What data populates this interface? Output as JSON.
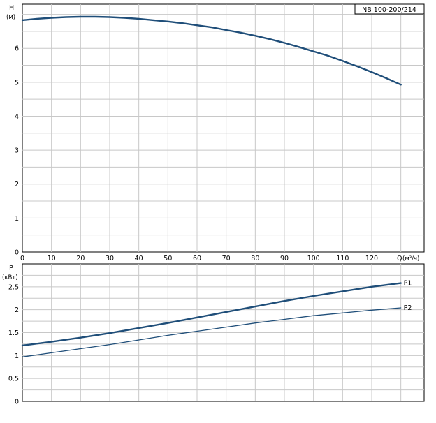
{
  "chart_data": [
    {
      "type": "line",
      "title": "NB 100-200/214",
      "ylabel": "H",
      "yunit": "(м)",
      "xlabel": "Q",
      "xunit": "(м³/ч)",
      "xlim": [
        0,
        138
      ],
      "ylim": [
        0,
        7.3
      ],
      "xticks": [
        0,
        10,
        20,
        30,
        40,
        50,
        60,
        70,
        80,
        90,
        100,
        110,
        120
      ],
      "yticks": [
        0,
        1,
        2,
        3,
        4,
        5,
        6
      ],
      "grid": true,
      "series": [
        {
          "name": "",
          "color": "#1f4e79",
          "x": [
            0,
            5,
            10,
            15,
            20,
            25,
            30,
            35,
            40,
            45,
            50,
            55,
            60,
            65,
            70,
            75,
            80,
            85,
            90,
            95,
            100,
            105,
            110,
            115,
            120,
            125,
            130
          ],
          "y": [
            6.83,
            6.87,
            6.9,
            6.92,
            6.93,
            6.93,
            6.92,
            6.9,
            6.87,
            6.83,
            6.79,
            6.74,
            6.68,
            6.62,
            6.54,
            6.46,
            6.37,
            6.27,
            6.16,
            6.04,
            5.91,
            5.78,
            5.63,
            5.47,
            5.3,
            5.12,
            4.93
          ]
        }
      ]
    },
    {
      "type": "line",
      "ylabel": "P",
      "yunit": "(кВт)",
      "xlim": [
        0,
        138
      ],
      "ylim": [
        0,
        3.0
      ],
      "yticks": [
        0,
        0.5,
        1,
        1.5,
        2,
        2.5
      ],
      "ytick_labels": [
        "0",
        "0.5",
        "1",
        "1.5",
        "2",
        "2.5"
      ],
      "grid": true,
      "series": [
        {
          "name": "P1",
          "color": "#1f4e79",
          "x": [
            0,
            10,
            20,
            30,
            40,
            50,
            60,
            70,
            80,
            90,
            100,
            110,
            120,
            130
          ],
          "y": [
            1.22,
            1.3,
            1.39,
            1.49,
            1.6,
            1.71,
            1.83,
            1.95,
            2.07,
            2.19,
            2.3,
            2.4,
            2.5,
            2.58
          ]
        },
        {
          "name": "P2",
          "color": "#1f4e79",
          "x": [
            0,
            10,
            20,
            30,
            40,
            50,
            60,
            70,
            80,
            90,
            100,
            110,
            120,
            130
          ],
          "y": [
            0.97,
            1.06,
            1.15,
            1.24,
            1.34,
            1.44,
            1.53,
            1.62,
            1.71,
            1.79,
            1.87,
            1.93,
            1.99,
            2.04
          ]
        }
      ]
    }
  ]
}
